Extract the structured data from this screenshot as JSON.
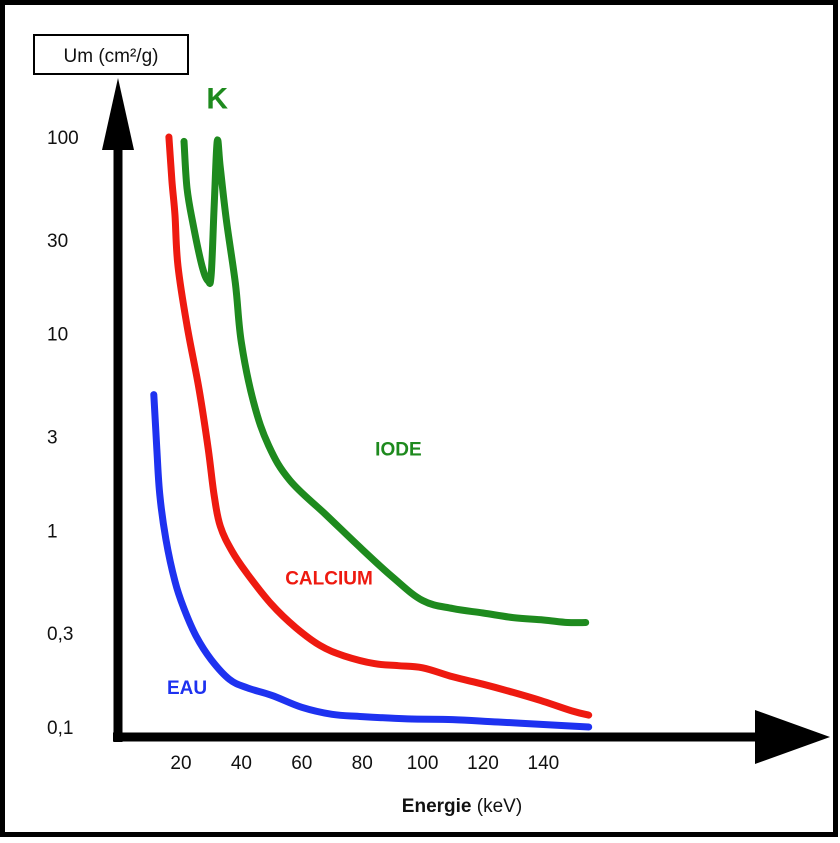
{
  "chart_data": {
    "type": "line",
    "ylabel": "Um (cm²/g)",
    "xlabel_bold": "Energie",
    "xlabel_rest": " (keV)",
    "y_scale": "log",
    "ylim": [
      0.1,
      100
    ],
    "xlim": [
      0,
      160
    ],
    "y_ticks": [
      {
        "value": 100,
        "label": "100"
      },
      {
        "value": 30,
        "label": "30"
      },
      {
        "value": 10,
        "label": "10"
      },
      {
        "value": 3,
        "label": "3"
      },
      {
        "value": 1,
        "label": "1"
      },
      {
        "value": 0.3,
        "label": "0,3"
      },
      {
        "value": 0.1,
        "label": "0,1"
      }
    ],
    "x_ticks": [
      {
        "value": 20,
        "label": "20"
      },
      {
        "value": 40,
        "label": "40"
      },
      {
        "value": 60,
        "label": "60"
      },
      {
        "value": 80,
        "label": "80"
      },
      {
        "value": 100,
        "label": "100"
      },
      {
        "value": 120,
        "label": "120"
      },
      {
        "value": 140,
        "label": "140"
      }
    ],
    "annotations": [
      {
        "text": "K",
        "color": "#1e8a1e",
        "x": 32,
        "y": 140
      }
    ],
    "series": [
      {
        "name": "IODE",
        "color": "#1e8a1e",
        "label_at": {
          "x": 92,
          "y": 2.4
        },
        "points": [
          [
            21,
            95
          ],
          [
            22,
            55
          ],
          [
            24,
            36
          ],
          [
            27,
            22
          ],
          [
            29,
            18.5
          ],
          [
            30,
            20
          ],
          [
            31,
            45
          ],
          [
            32,
            95
          ],
          [
            33,
            70
          ],
          [
            35,
            38
          ],
          [
            38,
            18
          ],
          [
            40,
            9
          ],
          [
            44,
            4.5
          ],
          [
            49,
            2.7
          ],
          [
            56,
            1.8
          ],
          [
            68,
            1.2
          ],
          [
            80,
            0.8
          ],
          [
            90,
            0.58
          ],
          [
            100,
            0.44
          ],
          [
            110,
            0.4
          ],
          [
            120,
            0.38
          ],
          [
            130,
            0.36
          ],
          [
            140,
            0.35
          ],
          [
            148,
            0.34
          ],
          [
            154,
            0.34
          ]
        ]
      },
      {
        "name": "CALCIUM",
        "color": "#ee1a10",
        "label_at": {
          "x": 69,
          "y": 0.53
        },
        "points": [
          [
            16,
            100
          ],
          [
            17,
            60
          ],
          [
            18,
            40
          ],
          [
            19,
            22
          ],
          [
            22,
            11
          ],
          [
            26,
            5.2
          ],
          [
            29,
            2.6
          ],
          [
            31,
            1.5
          ],
          [
            33,
            1.05
          ],
          [
            37,
            0.78
          ],
          [
            42,
            0.6
          ],
          [
            50,
            0.42
          ],
          [
            58,
            0.32
          ],
          [
            66,
            0.26
          ],
          [
            74,
            0.23
          ],
          [
            84,
            0.21
          ],
          [
            92,
            0.205
          ],
          [
            100,
            0.2
          ],
          [
            110,
            0.18
          ],
          [
            120,
            0.165
          ],
          [
            130,
            0.15
          ],
          [
            140,
            0.135
          ],
          [
            150,
            0.12
          ],
          [
            155,
            0.115
          ]
        ]
      },
      {
        "name": "EAU",
        "color": "#1e32f0",
        "label_at": {
          "x": 22,
          "y": 0.147
        },
        "points": [
          [
            11,
            4.9
          ],
          [
            12,
            2.6
          ],
          [
            13,
            1.5
          ],
          [
            15,
            0.9
          ],
          [
            18,
            0.55
          ],
          [
            21,
            0.4
          ],
          [
            25,
            0.29
          ],
          [
            30,
            0.22
          ],
          [
            36,
            0.175
          ],
          [
            42,
            0.158
          ],
          [
            50,
            0.145
          ],
          [
            60,
            0.126
          ],
          [
            70,
            0.116
          ],
          [
            80,
            0.113
          ],
          [
            95,
            0.11
          ],
          [
            110,
            0.109
          ],
          [
            125,
            0.106
          ],
          [
            140,
            0.103
          ],
          [
            155,
            0.1
          ]
        ]
      }
    ],
    "colors": {
      "axis": "#000000",
      "frame": "#000000"
    }
  }
}
